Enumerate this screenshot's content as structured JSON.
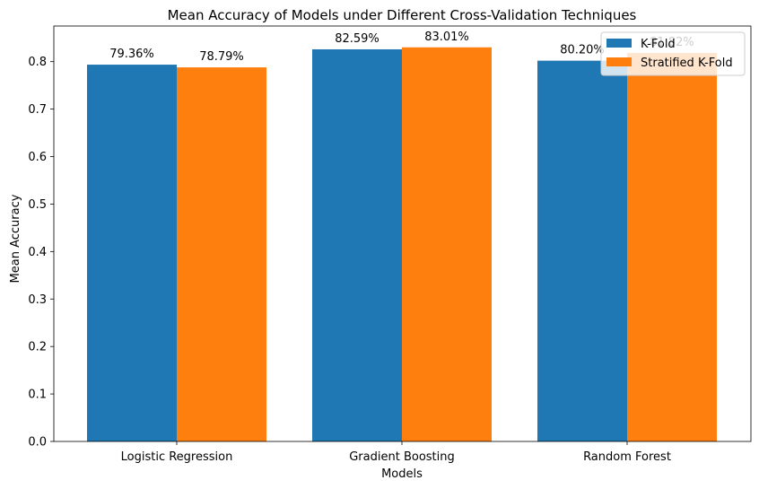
{
  "chart_data": {
    "type": "bar",
    "title": "Mean Accuracy of Models under Different Cross-Validation Techniques",
    "xlabel": "Models",
    "ylabel": "Mean Accuracy",
    "categories": [
      "Logistic Regression",
      "Gradient Boosting",
      "Random Forest"
    ],
    "series": [
      {
        "name": "K-Fold",
        "color": "#1f77b4",
        "values": [
          0.7936,
          0.8259,
          0.802
        ],
        "labels": [
          "79.36%",
          "82.59%",
          "80.20%"
        ]
      },
      {
        "name": "Stratified K-Fold",
        "color": "#ff7f0e",
        "values": [
          0.7879,
          0.8301,
          0.8182
        ],
        "labels": [
          "78.79%",
          "83.01%",
          "81.82%"
        ]
      }
    ],
    "ylim": [
      0,
      0.875
    ],
    "yticks": [
      "0.0",
      "0.1",
      "0.2",
      "0.3",
      "0.4",
      "0.5",
      "0.6",
      "0.7",
      "0.8"
    ],
    "grid": false,
    "legend_position": "top-right"
  }
}
